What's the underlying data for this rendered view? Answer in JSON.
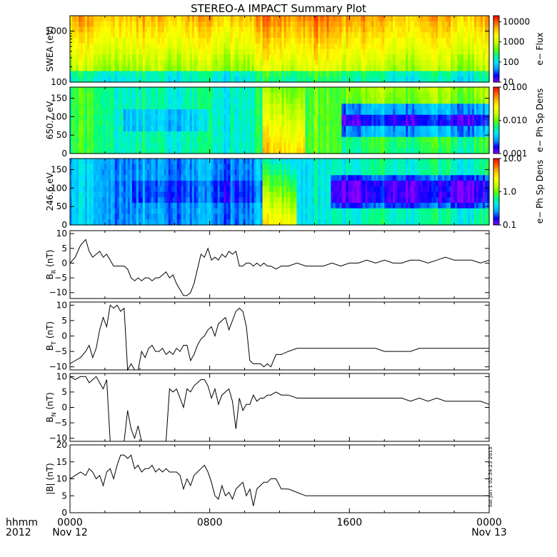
{
  "title": "STEREO-A IMPACT Summary Plot",
  "stamp": "Sat Jun 1 02:34:23 2013",
  "footer": {
    "left_top": "hhmm",
    "left_bottom": "2012",
    "ticks": [
      {
        "time": "0000",
        "date": "Nov 12",
        "hour": 0
      },
      {
        "time": "0800",
        "date": "",
        "hour": 8
      },
      {
        "time": "1600",
        "date": "",
        "hour": 16
      },
      {
        "time": "0000",
        "date": "Nov 13",
        "hour": 24
      }
    ]
  },
  "chart_data": [
    {
      "type": "heatmap",
      "ylabel": "SWEA (eV)",
      "yscale": "log",
      "ylim": [
        100,
        2000
      ],
      "yticks": [
        {
          "v": 100,
          "l": "100"
        },
        {
          "v": 1000,
          "l": "1000"
        }
      ],
      "colorbar": {
        "label": "e− Flux",
        "scale": "log",
        "range": [
          10,
          20000
        ],
        "ticks": [
          {
            "v": 10,
            "l": "10"
          },
          {
            "v": 100,
            "l": "100"
          },
          {
            "v": 1000,
            "l": "1000"
          },
          {
            "v": 10000,
            "l": "10000"
          }
        ],
        "colors": [
          "#8b00ff",
          "#0000ff",
          "#00a0ff",
          "#00e5ff",
          "#00ff80",
          "#66ff00",
          "#ccff00",
          "#ffff00",
          "#ffbf00",
          "#ff6000",
          "#ff0000"
        ]
      }
    },
    {
      "type": "heatmap",
      "ylabel": "650.7 eV",
      "ylim": [
        0,
        180
      ],
      "yticks": [
        {
          "v": 0,
          "l": "0"
        },
        {
          "v": 50,
          "l": "50"
        },
        {
          "v": 100,
          "l": "100"
        },
        {
          "v": 150,
          "l": "150"
        }
      ],
      "colorbar": {
        "label": "e− Ph Sp Dens",
        "scale": "log",
        "range": [
          0.001,
          0.1
        ],
        "ticks": [
          {
            "v": 0.001,
            "l": "0.001"
          },
          {
            "v": 0.01,
            "l": "0.010"
          },
          {
            "v": 0.1,
            "l": "0.100"
          }
        ],
        "colors": [
          "#8b00ff",
          "#0000ff",
          "#00a0ff",
          "#00e5ff",
          "#00ff80",
          "#66ff00",
          "#ccff00",
          "#ffff00",
          "#ffbf00",
          "#ff6000",
          "#ff0000"
        ]
      }
    },
    {
      "type": "heatmap",
      "ylabel": "246.6 eV",
      "ylim": [
        0,
        180
      ],
      "yticks": [
        {
          "v": 0,
          "l": "0"
        },
        {
          "v": 50,
          "l": "50"
        },
        {
          "v": 100,
          "l": "100"
        },
        {
          "v": 150,
          "l": "150"
        }
      ],
      "colorbar": {
        "label": "e− Ph Sp Dens",
        "scale": "log",
        "range": [
          0.1,
          10
        ],
        "ticks": [
          {
            "v": 0.1,
            "l": "0.1"
          },
          {
            "v": 1,
            "l": "1.0"
          },
          {
            "v": 10,
            "l": "10.0"
          }
        ],
        "colors": [
          "#8b00ff",
          "#0000ff",
          "#00a0ff",
          "#00e5ff",
          "#00ff80",
          "#66ff00",
          "#ccff00",
          "#ffff00",
          "#ffbf00",
          "#ff6000",
          "#ff0000"
        ]
      }
    },
    {
      "type": "line",
      "ylabel": "B_R (nT)",
      "ylabel_main": "B",
      "ylabel_sub": "R",
      "ylabel_unit": "(nT)",
      "ylim": [
        -12,
        11
      ],
      "yticks": [
        {
          "v": -10,
          "l": "−10"
        },
        {
          "v": -5,
          "l": "−5"
        },
        {
          "v": 0,
          "l": "0"
        },
        {
          "v": 5,
          "l": "5"
        },
        {
          "v": 10,
          "l": "10"
        }
      ],
      "x": [
        0,
        0.3,
        0.6,
        0.9,
        1.1,
        1.3,
        1.5,
        1.7,
        1.9,
        2.1,
        2.3,
        2.5,
        2.7,
        2.9,
        3.1,
        3.3,
        3.5,
        3.7,
        3.9,
        4.1,
        4.3,
        4.5,
        4.7,
        4.9,
        5.1,
        5.3,
        5.5,
        5.7,
        5.9,
        6.1,
        6.3,
        6.5,
        6.7,
        6.9,
        7.1,
        7.3,
        7.5,
        7.7,
        7.9,
        8.1,
        8.3,
        8.5,
        8.7,
        8.9,
        9.1,
        9.3,
        9.5,
        9.7,
        9.9,
        10.1,
        10.3,
        10.5,
        10.7,
        10.9,
        11.1,
        11.3,
        11.5,
        11.8,
        12.1,
        12.5,
        13,
        13.5,
        14,
        14.5,
        15,
        15.5,
        16,
        16.5,
        17,
        17.5,
        18,
        18.5,
        19,
        19.5,
        20,
        20.5,
        21,
        21.5,
        22,
        22.5,
        23,
        23.5,
        24
      ],
      "y": [
        0,
        2,
        6,
        8,
        4,
        2,
        3,
        4,
        2,
        3,
        1,
        -1,
        -1,
        -1,
        -1,
        -2,
        -5,
        -6,
        -5,
        -6,
        -5,
        -5,
        -6,
        -5,
        -5,
        -4,
        -3,
        -5,
        -4,
        -7,
        -9,
        -11,
        -11,
        -10,
        -7,
        -2,
        3,
        2,
        5,
        1,
        2,
        1,
        3,
        2,
        4,
        3,
        4,
        -1,
        -1,
        0,
        0,
        -1,
        0,
        -1,
        0,
        -1,
        -1,
        -2,
        -1,
        -1,
        0,
        -1,
        -1,
        -1,
        0,
        -1,
        0,
        0,
        1,
        0,
        1,
        0,
        0,
        1,
        1,
        0,
        1,
        2,
        1,
        1,
        1,
        0,
        1
      ]
    },
    {
      "type": "line",
      "ylabel": "B_T (nT)",
      "ylabel_main": "B",
      "ylabel_sub": "T",
      "ylabel_unit": "(nT)",
      "ylim": [
        -11,
        11
      ],
      "yticks": [
        {
          "v": -10,
          "l": "−10"
        },
        {
          "v": -5,
          "l": "−5"
        },
        {
          "v": 0,
          "l": "0"
        },
        {
          "v": 5,
          "l": "5"
        },
        {
          "v": 10,
          "l": "10"
        }
      ],
      "x": [
        0,
        0.3,
        0.6,
        0.9,
        1.1,
        1.3,
        1.5,
        1.7,
        1.9,
        2.1,
        2.3,
        2.5,
        2.7,
        2.9,
        3.1,
        3.3,
        3.5,
        3.7,
        3.9,
        4.1,
        4.3,
        4.5,
        4.7,
        4.9,
        5.1,
        5.3,
        5.5,
        5.7,
        5.9,
        6.1,
        6.3,
        6.5,
        6.7,
        6.9,
        7.1,
        7.3,
        7.5,
        7.7,
        7.9,
        8.1,
        8.3,
        8.5,
        8.7,
        8.9,
        9.1,
        9.3,
        9.5,
        9.7,
        9.9,
        10.1,
        10.3,
        10.5,
        10.7,
        10.9,
        11.1,
        11.3,
        11.5,
        11.8,
        12.1,
        12.5,
        13,
        13.5,
        14,
        14.5,
        15,
        15.5,
        16,
        16.5,
        17,
        17.5,
        18,
        18.5,
        19,
        19.5,
        20,
        20.5,
        21,
        21.5,
        22,
        22.5,
        23,
        23.5,
        24
      ],
      "y": [
        -9,
        -8,
        -7,
        -5,
        -3,
        -7,
        -4,
        2,
        6,
        3,
        10,
        9,
        10,
        8,
        9,
        -11,
        -9,
        -11,
        -11,
        -5,
        -7,
        -4,
        -3,
        -5,
        -5,
        -4,
        -6,
        -5,
        -6,
        -4,
        -5,
        -3,
        -3,
        -8,
        -6,
        -3,
        -1,
        0,
        2,
        3,
        0,
        4,
        5,
        6,
        2,
        5,
        8,
        9,
        8,
        3,
        -8,
        -9,
        -9,
        -9,
        -10,
        -9,
        -10,
        -6,
        -6,
        -5,
        -4,
        -4,
        -4,
        -4,
        -4,
        -4,
        -4,
        -4,
        -4,
        -4,
        -5,
        -5,
        -5,
        -5,
        -4,
        -4,
        -4,
        -4,
        -4,
        -4,
        -4,
        -4,
        -4
      ]
    },
    {
      "type": "line",
      "ylabel": "B_N (nT)",
      "ylabel_main": "B",
      "ylabel_sub": "N",
      "ylabel_unit": "(nT)",
      "ylim": [
        -11,
        11
      ],
      "yticks": [
        {
          "v": -10,
          "l": "−10"
        },
        {
          "v": -5,
          "l": "−5"
        },
        {
          "v": 0,
          "l": "0"
        },
        {
          "v": 5,
          "l": "5"
        },
        {
          "v": 10,
          "l": "10"
        }
      ],
      "x": [
        0,
        0.3,
        0.6,
        0.9,
        1.1,
        1.3,
        1.5,
        1.7,
        1.9,
        2.1,
        2.3,
        2.5,
        2.7,
        2.9,
        3.1,
        3.3,
        3.5,
        3.7,
        3.9,
        4.1,
        4.3,
        4.5,
        4.7,
        4.9,
        5.1,
        5.3,
        5.5,
        5.7,
        5.9,
        6.1,
        6.3,
        6.5,
        6.7,
        6.9,
        7.1,
        7.3,
        7.5,
        7.7,
        7.9,
        8.1,
        8.3,
        8.5,
        8.7,
        8.9,
        9.1,
        9.3,
        9.5,
        9.7,
        9.9,
        10.1,
        10.3,
        10.5,
        10.7,
        10.9,
        11.1,
        11.3,
        11.5,
        11.8,
        12.1,
        12.5,
        13,
        13.5,
        14,
        14.5,
        15,
        15.5,
        16,
        16.5,
        17,
        17.5,
        18,
        18.5,
        19,
        19.5,
        20,
        20.5,
        21,
        21.5,
        22,
        22.5,
        23,
        23.5,
        24
      ],
      "y": [
        10,
        9,
        10,
        10,
        8,
        9,
        10,
        8,
        6,
        9,
        -11,
        -11,
        -11,
        -11,
        -11,
        -1,
        -7,
        -10,
        -6,
        -11,
        -11,
        -11,
        -11,
        -11,
        -11,
        -11,
        -11,
        6,
        5,
        6,
        3,
        0,
        6,
        5,
        7,
        8,
        9,
        9,
        7,
        3,
        6,
        1,
        4,
        5,
        6,
        2,
        -7,
        3,
        -1,
        1,
        1,
        4,
        2,
        3,
        3,
        4,
        4,
        5,
        4,
        4,
        3,
        3,
        3,
        3,
        3,
        3,
        3,
        3,
        3,
        3,
        3,
        3,
        3,
        2,
        3,
        2,
        3,
        2,
        2,
        2,
        2,
        2,
        1
      ]
    },
    {
      "type": "line",
      "ylabel": "|B| (nT)",
      "ylabel_main": "|B|",
      "ylabel_sub": "",
      "ylabel_unit": "(nT)",
      "ylim": [
        0,
        20
      ],
      "yticks": [
        {
          "v": 0,
          "l": "0"
        },
        {
          "v": 5,
          "l": "5"
        },
        {
          "v": 10,
          "l": "10"
        },
        {
          "v": 15,
          "l": "15"
        },
        {
          "v": 20,
          "l": "20"
        }
      ],
      "x": [
        0,
        0.3,
        0.6,
        0.9,
        1.1,
        1.3,
        1.5,
        1.7,
        1.9,
        2.1,
        2.3,
        2.5,
        2.7,
        2.9,
        3.1,
        3.3,
        3.5,
        3.7,
        3.9,
        4.1,
        4.3,
        4.5,
        4.7,
        4.9,
        5.1,
        5.3,
        5.5,
        5.7,
        5.9,
        6.1,
        6.3,
        6.5,
        6.7,
        6.9,
        7.1,
        7.3,
        7.5,
        7.7,
        7.9,
        8.1,
        8.3,
        8.5,
        8.7,
        8.9,
        9.1,
        9.3,
        9.5,
        9.7,
        9.9,
        10.1,
        10.3,
        10.5,
        10.7,
        10.9,
        11.1,
        11.3,
        11.5,
        11.8,
        12.1,
        12.5,
        13,
        13.5,
        14,
        14.5,
        15,
        15.5,
        16,
        16.5,
        17,
        17.5,
        18,
        18.5,
        19,
        19.5,
        20,
        20.5,
        21,
        21.5,
        22,
        22.5,
        23,
        23.5,
        24
      ],
      "y": [
        10,
        11,
        12,
        11,
        13,
        12,
        10,
        11,
        8,
        12,
        13,
        10,
        14,
        17,
        17,
        16,
        17,
        13,
        14,
        12,
        13,
        13,
        14,
        12,
        13,
        12,
        13,
        12,
        12,
        12,
        11,
        7,
        10,
        8,
        11,
        12,
        13,
        14,
        12,
        9,
        5,
        4,
        8,
        5,
        6,
        4,
        7,
        8,
        9,
        5,
        7,
        2,
        7,
        8,
        9,
        9,
        10,
        10,
        7,
        7,
        6,
        5,
        5,
        5,
        5,
        5,
        5,
        5,
        5,
        5,
        5,
        5,
        5,
        5,
        5,
        5,
        5,
        5,
        5,
        5,
        5,
        5,
        5
      ]
    }
  ]
}
